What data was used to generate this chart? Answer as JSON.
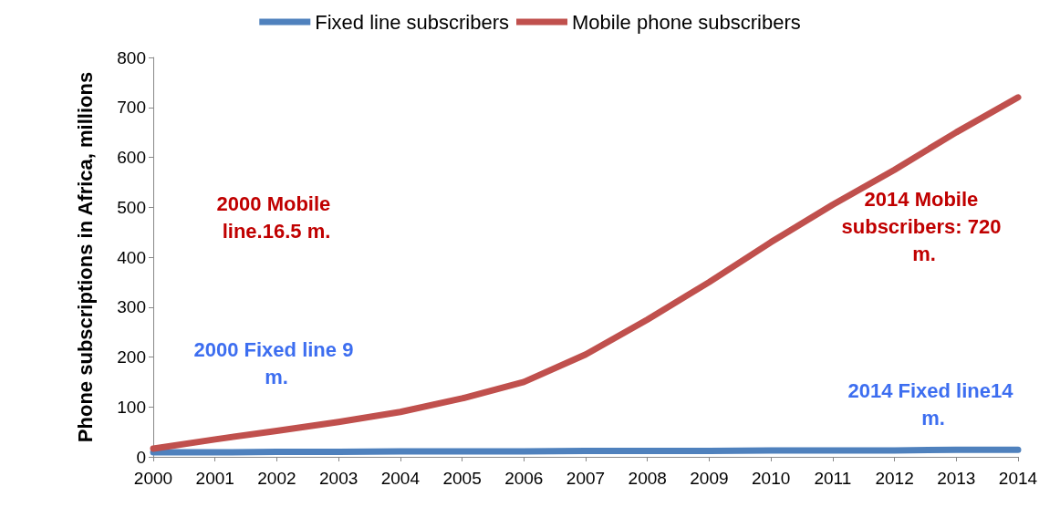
{
  "chart_data": {
    "type": "line",
    "ylabel": "Phone subscriptions in Africa, millions",
    "categories": [
      "2000",
      "2001",
      "2002",
      "2003",
      "2004",
      "2005",
      "2006",
      "2007",
      "2008",
      "2009",
      "2010",
      "2011",
      "2012",
      "2013",
      "2014"
    ],
    "series": [
      {
        "name": "Fixed line subscribers",
        "color": "#4f81bd",
        "values": [
          9,
          9,
          10,
          10,
          11,
          11,
          11,
          12,
          12,
          12,
          13,
          13,
          13,
          14,
          14
        ]
      },
      {
        "name": "Mobile phone subscribers",
        "color": "#c0504d",
        "values": [
          16.5,
          35,
          52,
          70,
          90,
          117,
          150,
          205,
          275,
          350,
          430,
          505,
          575,
          650,
          720
        ]
      }
    ],
    "ylim": [
      0,
      800
    ],
    "yticks": [
      0,
      100,
      200,
      300,
      400,
      500,
      600,
      700,
      800
    ],
    "grid": false,
    "legend": "top",
    "marker": "none",
    "line_style": "solid",
    "annotations": [
      "2000 Mobile line.16.5 m.",
      "2014 Mobile subscribers: 720 m.",
      "2000 Fixed line 9 m.",
      "2014 Fixed line14 m."
    ]
  }
}
